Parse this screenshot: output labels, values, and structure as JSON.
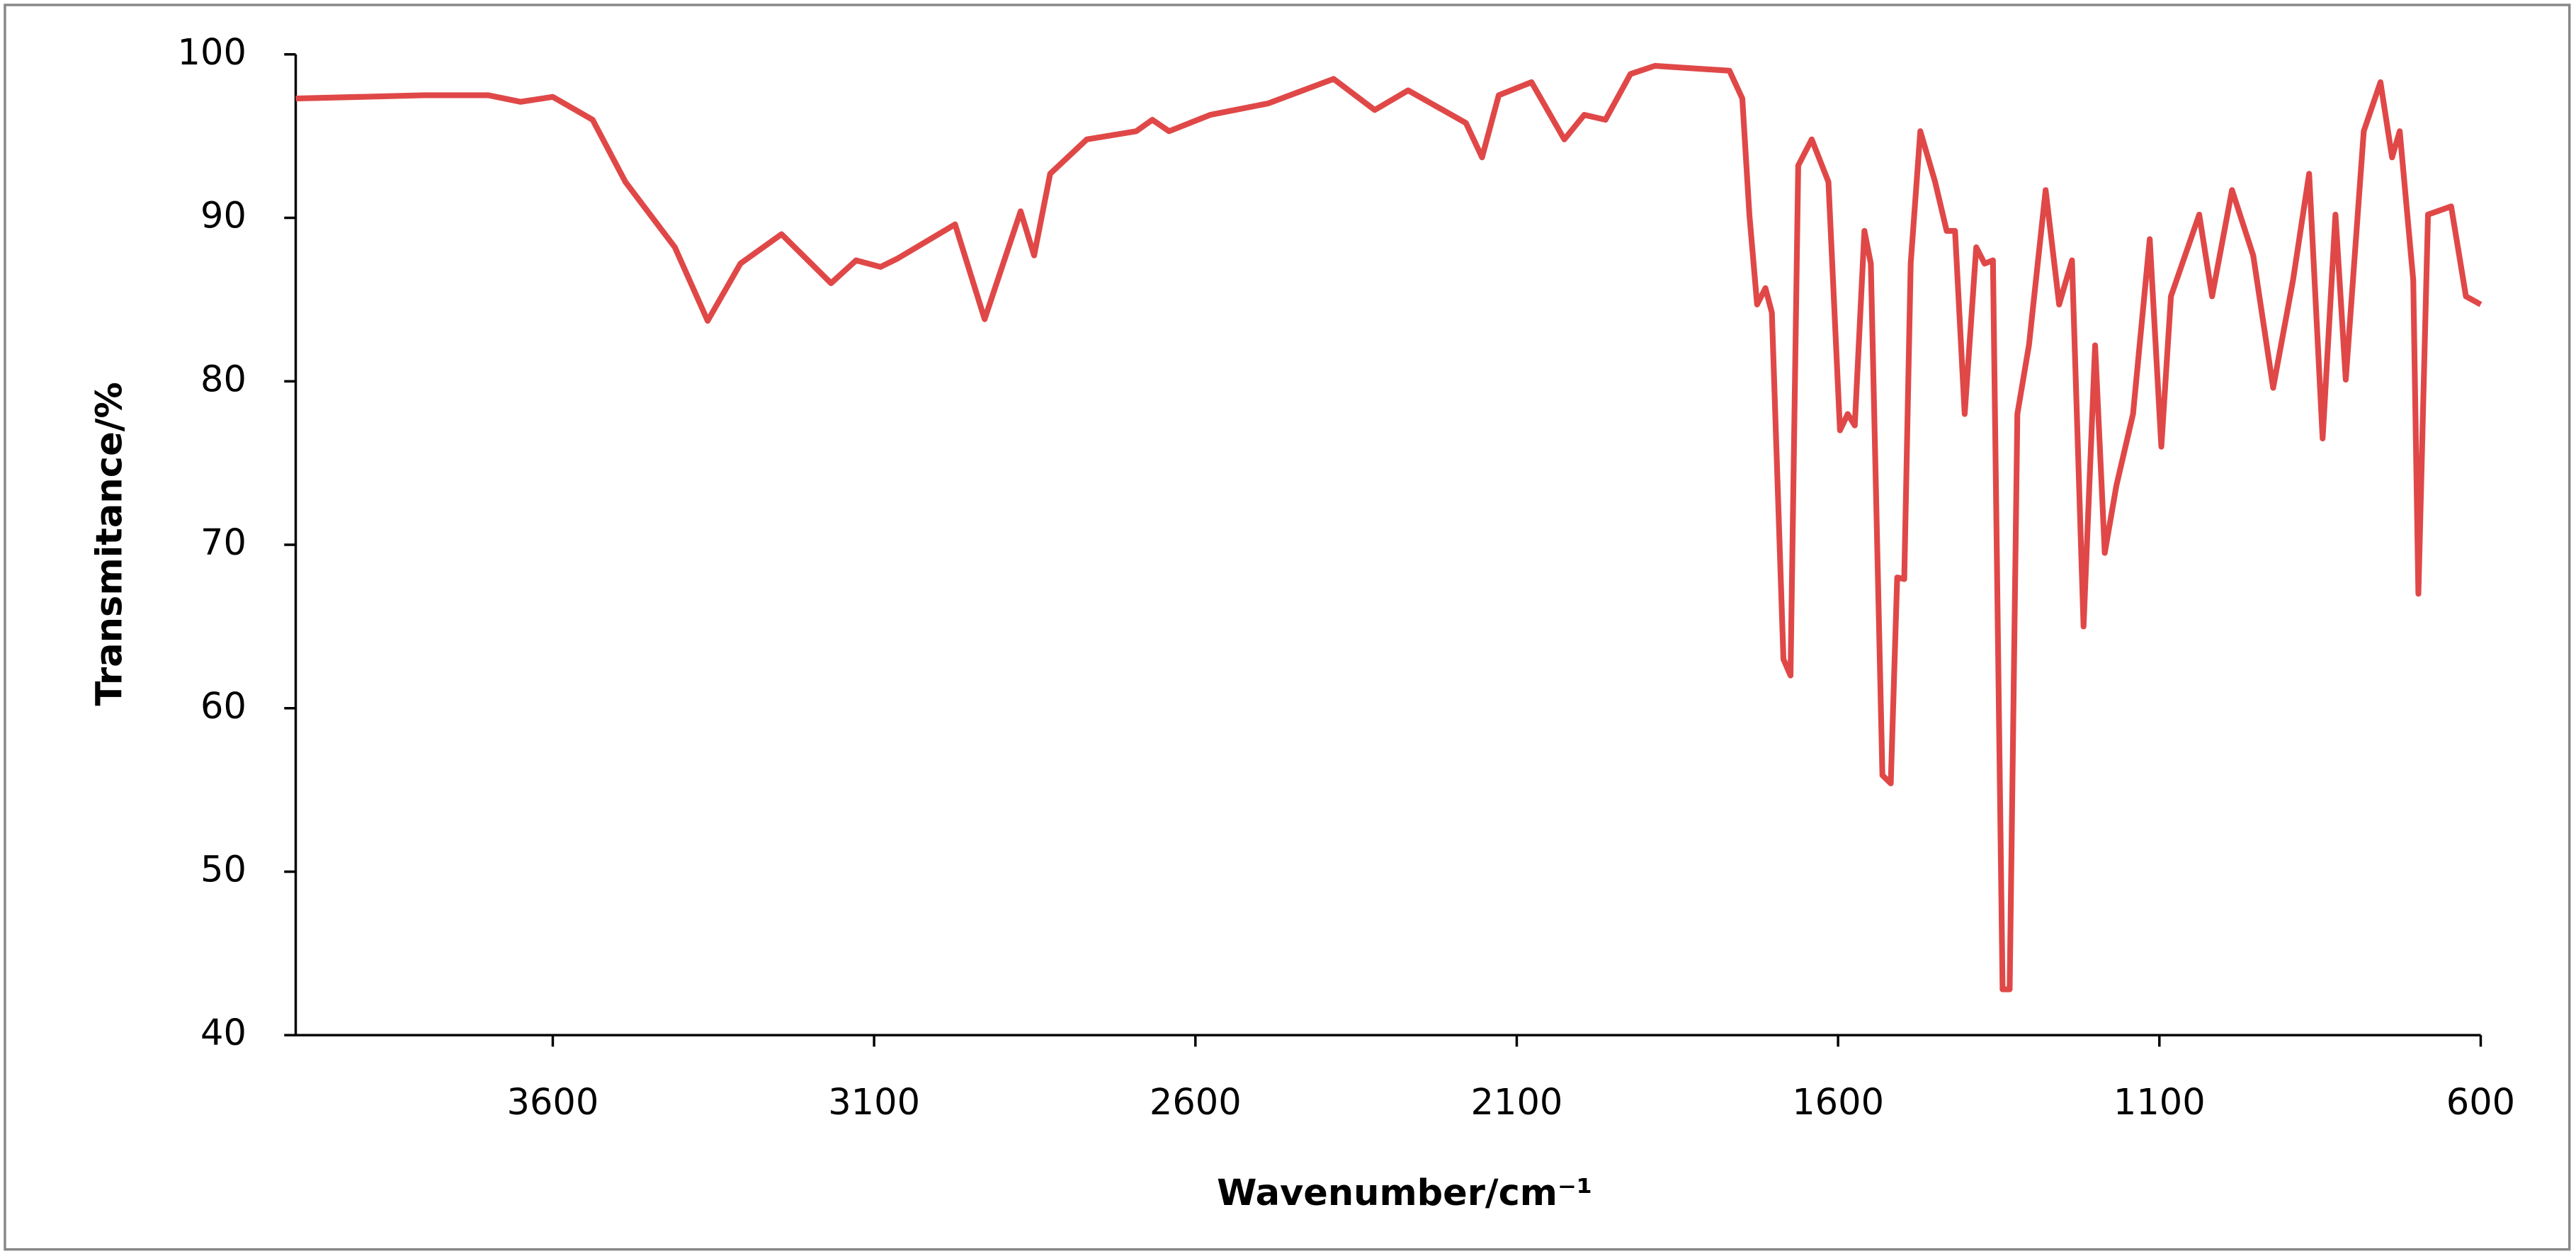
{
  "chart_data": {
    "type": "line",
    "x_label": "Wavenumber/cm⁻¹",
    "y_label": "Transmitance/%",
    "xlim": [
      4000,
      600
    ],
    "ylim": [
      40,
      100
    ],
    "xticks": [
      3600,
      3100,
      2600,
      2100,
      1600,
      1100,
      600
    ],
    "yticks": [
      40,
      50,
      60,
      70,
      80,
      90,
      100
    ],
    "grid": false,
    "color": "#e04848",
    "x": [
      4000,
      3800,
      3700,
      3650,
      3600,
      3538,
      3487,
      3410,
      3359,
      3308,
      3244,
      3167,
      3128,
      3090,
      3064,
      2974,
      2928,
      2872,
      2851,
      2826,
      2769,
      2692,
      2667,
      2641,
      2577,
      2487,
      2385,
      2321,
      2269,
      2179,
      2154,
      2128,
      2077,
      2026,
      1995,
      1962,
      1923,
      1885,
      1769,
      1749,
      1738,
      1726,
      1713,
      1703,
      1685,
      1674,
      1662,
      1641,
      1615,
      1597,
      1585,
      1574,
      1559,
      1549,
      1531,
      1518,
      1508,
      1497,
      1487,
      1472,
      1449,
      1431,
      1418,
      1403,
      1385,
      1372,
      1359,
      1344,
      1333,
      1321,
      1303,
      1277,
      1256,
      1236,
      1218,
      1200,
      1185,
      1167,
      1141,
      1115,
      1097,
      1082,
      1038,
      1018,
      987,
      954,
      923,
      892,
      867,
      846,
      826,
      810,
      782,
      756,
      738,
      726,
      705,
      697,
      682,
      646,
      623,
      600
    ],
    "values": [
      97.3,
      97.5,
      97.5,
      97.1,
      97.4,
      96.0,
      92.2,
      88.2,
      83.7,
      87.2,
      89.0,
      86.0,
      87.4,
      87.0,
      87.5,
      89.6,
      83.8,
      90.4,
      87.7,
      92.7,
      94.8,
      95.3,
      96.0,
      95.3,
      96.3,
      97.0,
      98.5,
      96.6,
      97.8,
      95.8,
      93.7,
      97.5,
      98.3,
      94.8,
      96.3,
      96.0,
      98.8,
      99.3,
      99.0,
      97.3,
      90.2,
      84.7,
      85.7,
      84.2,
      63.0,
      62.0,
      93.2,
      94.8,
      92.2,
      77.0,
      78.0,
      77.3,
      89.2,
      87.2,
      55.9,
      55.4,
      68.0,
      67.9,
      87.2,
      95.3,
      92.2,
      89.2,
      89.2,
      78.0,
      88.2,
      87.2,
      87.4,
      42.8,
      42.8,
      78.0,
      82.2,
      91.7,
      84.7,
      87.4,
      65.0,
      82.2,
      69.5,
      73.6,
      78.0,
      88.7,
      76.0,
      85.2,
      90.2,
      85.2,
      91.7,
      87.7,
      79.6,
      86.2,
      92.7,
      76.5,
      90.2,
      80.1,
      95.3,
      98.3,
      93.7,
      95.3,
      86.2,
      67.0,
      90.2,
      90.7,
      85.2,
      84.7
    ]
  }
}
